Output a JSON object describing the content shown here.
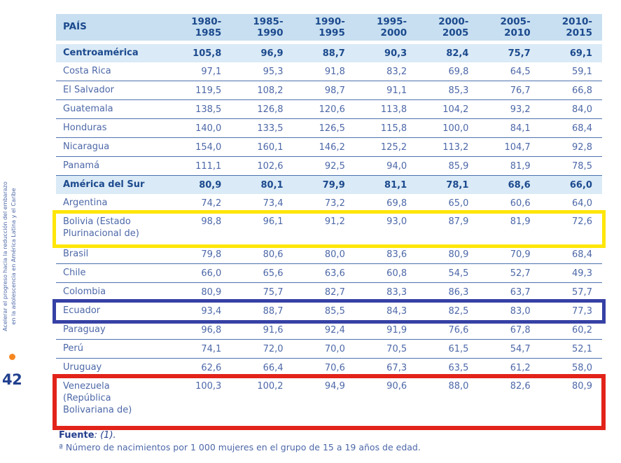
{
  "page": {
    "number": "42",
    "sidebar_text_lines": [
      "Acelerar el progreso hacia la reducción del embarazo",
      "en la adolescencia en América Latina y el Caribe"
    ]
  },
  "table": {
    "columns": [
      "PAÍS",
      "1980-1985",
      "1985-1990",
      "1990-1995",
      "1995-2000",
      "2000-2005",
      "2005-2010",
      "2010-2015"
    ],
    "rows": [
      {
        "name_lines": [
          "Centroamérica"
        ],
        "type": "region",
        "highlight": null,
        "values": [
          "105,8",
          "96,9",
          "88,7",
          "90,3",
          "82,4",
          "75,7",
          "69,1"
        ]
      },
      {
        "name_lines": [
          "Costa Rica"
        ],
        "type": "country",
        "highlight": null,
        "values": [
          "97,1",
          "95,3",
          "91,8",
          "83,2",
          "69,8",
          "64,5",
          "59,1"
        ]
      },
      {
        "name_lines": [
          "El Salvador"
        ],
        "type": "country",
        "highlight": null,
        "values": [
          "119,5",
          "108,2",
          "98,7",
          "91,1",
          "85,3",
          "76,7",
          "66,8"
        ]
      },
      {
        "name_lines": [
          "Guatemala"
        ],
        "type": "country",
        "highlight": null,
        "values": [
          "138,5",
          "126,8",
          "120,6",
          "113,8",
          "104,2",
          "93,2",
          "84,0"
        ]
      },
      {
        "name_lines": [
          "Honduras"
        ],
        "type": "country",
        "highlight": null,
        "values": [
          "140,0",
          "133,5",
          "126,5",
          "115,8",
          "100,0",
          "84,1",
          "68,4"
        ]
      },
      {
        "name_lines": [
          "Nicaragua"
        ],
        "type": "country",
        "highlight": null,
        "values": [
          "154,0",
          "160,1",
          "146,2",
          "125,2",
          "113,2",
          "104,7",
          "92,8"
        ]
      },
      {
        "name_lines": [
          "Panamá"
        ],
        "type": "country",
        "highlight": null,
        "values": [
          "111,1",
          "102,6",
          "92,5",
          "94,0",
          "85,9",
          "81,9",
          "78,5"
        ]
      },
      {
        "name_lines": [
          "América del Sur"
        ],
        "type": "region",
        "highlight": null,
        "values": [
          "80,9",
          "80,1",
          "79,9",
          "81,1",
          "78,1",
          "68,6",
          "66,0"
        ]
      },
      {
        "name_lines": [
          "Argentina"
        ],
        "type": "country",
        "highlight": null,
        "values": [
          "74,2",
          "73,4",
          "73,2",
          "69,8",
          "65,0",
          "60,6",
          "64,0"
        ]
      },
      {
        "name_lines": [
          "Bolivia (Estado",
          "Plurinacional de)"
        ],
        "type": "country",
        "highlight": "yellow",
        "values": [
          "98,8",
          "96,1",
          "91,2",
          "93,0",
          "87,9",
          "81,9",
          "72,6"
        ]
      },
      {
        "name_lines": [
          "Brasil"
        ],
        "type": "country",
        "highlight": null,
        "values": [
          "79,8",
          "80,6",
          "80,0",
          "83,6",
          "80,9",
          "70,9",
          "68,4"
        ]
      },
      {
        "name_lines": [
          "Chile"
        ],
        "type": "country",
        "highlight": null,
        "values": [
          "66,0",
          "65,6",
          "63,6",
          "60,8",
          "54,5",
          "52,7",
          "49,3"
        ]
      },
      {
        "name_lines": [
          "Colombia"
        ],
        "type": "country",
        "highlight": null,
        "values": [
          "80,9",
          "75,7",
          "82,7",
          "83,3",
          "86,3",
          "63,7",
          "57,7"
        ]
      },
      {
        "name_lines": [
          "Ecuador"
        ],
        "type": "country",
        "highlight": "blue",
        "values": [
          "93,4",
          "88,7",
          "85,5",
          "84,3",
          "82,5",
          "83,0",
          "77,3"
        ]
      },
      {
        "name_lines": [
          "Paraguay"
        ],
        "type": "country",
        "highlight": null,
        "values": [
          "96,8",
          "91,6",
          "92,4",
          "91,9",
          "76,6",
          "67,8",
          "60,2"
        ]
      },
      {
        "name_lines": [
          "Perú"
        ],
        "type": "country",
        "highlight": null,
        "values": [
          "74,1",
          "72,0",
          "70,0",
          "70,5",
          "61,5",
          "54,7",
          "52,1"
        ]
      },
      {
        "name_lines": [
          "Uruguay"
        ],
        "type": "country",
        "highlight": null,
        "values": [
          "62,6",
          "66,4",
          "70,6",
          "67,3",
          "63,5",
          "61,2",
          "58,0"
        ]
      },
      {
        "name_lines": [
          "Venezuela",
          "(República",
          "Bolivariana de)"
        ],
        "type": "country",
        "highlight": "red",
        "values": [
          "100,3",
          "100,2",
          "94,9",
          "90,6",
          "88,0",
          "82,6",
          "80,9"
        ]
      }
    ]
  },
  "footer": {
    "source_label": "Fuente",
    "source_ref": ": (1).",
    "note": "ª Número de nacimientos por 1 000 mujeres en el grupo de 15 a 19 años de edad."
  },
  "colors": {
    "header_bg": "#c7dff0",
    "band_bg": "#daeaf6",
    "heading_text": "#1c4a8e",
    "body_text": "#4d68a8",
    "row_border": "#4d72ae",
    "highlight_yellow": "#ffe607",
    "highlight_blue": "#3641a5",
    "highlight_red": "#e2231a",
    "accent_orange": "#f6861f"
  }
}
